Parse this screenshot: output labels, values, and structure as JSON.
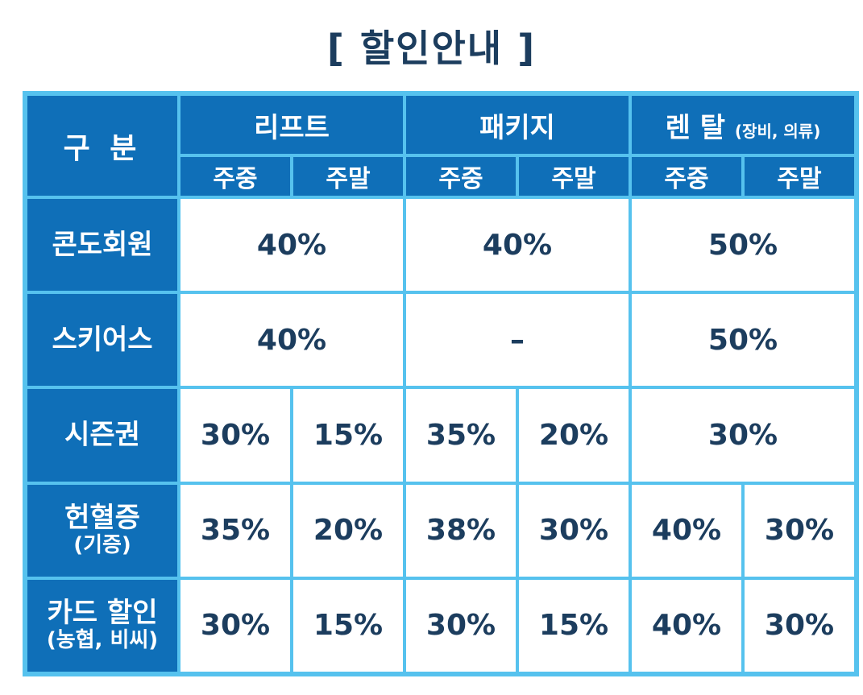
{
  "title": "[ 할인안내 ]",
  "header": {
    "corner": "구 분",
    "groups": [
      "리프트",
      "패키지",
      "렌 탈"
    ],
    "rental_note": "(장비, 의류)",
    "sub": [
      "주중",
      "주말",
      "주중",
      "주말",
      "주중",
      "주말"
    ]
  },
  "rows": [
    {
      "label": "콘도회원",
      "note": "",
      "lift": "40%",
      "package": "40%",
      "rental": "50%"
    },
    {
      "label": "스키어스",
      "note": "",
      "lift": "40%",
      "package": "–",
      "rental": "50%"
    },
    {
      "label": "시즌권",
      "note": "",
      "lift_wd": "30%",
      "lift_we": "15%",
      "package_wd": "35%",
      "package_we": "20%",
      "rental": "30%"
    },
    {
      "label": "헌혈증",
      "note": "(기증)",
      "lift_wd": "35%",
      "lift_we": "20%",
      "package_wd": "38%",
      "package_we": "30%",
      "rental_wd": "40%",
      "rental_we": "30%"
    },
    {
      "label": "카드 할인",
      "note": "(농협, 비씨)",
      "lift_wd": "30%",
      "lift_we": "15%",
      "package_wd": "30%",
      "package_we": "15%",
      "rental_wd": "40%",
      "rental_we": "30%"
    }
  ]
}
